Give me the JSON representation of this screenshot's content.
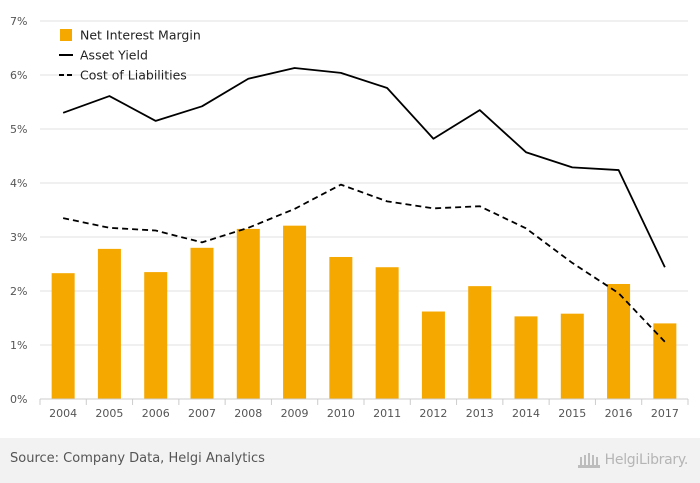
{
  "chart_data": {
    "type": "bar",
    "categories": [
      "2004",
      "2005",
      "2006",
      "2007",
      "2008",
      "2009",
      "2010",
      "2011",
      "2012",
      "2013",
      "2014",
      "2015",
      "2016",
      "2017"
    ],
    "series": [
      {
        "name": "Net Interest Margin",
        "type": "bar",
        "color": "#f5a800",
        "values": [
          2.33,
          2.78,
          2.35,
          2.8,
          3.15,
          3.21,
          2.63,
          2.44,
          1.62,
          2.09,
          1.53,
          1.58,
          2.13,
          1.4
        ]
      },
      {
        "name": "Asset Yield",
        "type": "line",
        "color": "#000000",
        "dash": "solid",
        "values": [
          5.3,
          5.61,
          5.15,
          5.42,
          5.93,
          6.13,
          6.04,
          5.76,
          4.82,
          5.35,
          4.57,
          4.29,
          4.24,
          2.44
        ]
      },
      {
        "name": "Cost of Liabilities",
        "type": "line",
        "color": "#000000",
        "dash": "dashed",
        "values": [
          3.35,
          3.17,
          3.12,
          2.9,
          3.17,
          3.52,
          3.97,
          3.66,
          3.53,
          3.57,
          3.16,
          2.52,
          1.96,
          1.06
        ]
      }
    ],
    "y_ticks": [
      "0%",
      "1%",
      "2%",
      "3%",
      "4%",
      "5%",
      "6%",
      "7%"
    ],
    "ylim": [
      0,
      7
    ],
    "legend_position": "top-left",
    "grid": "horizontal"
  },
  "footer": {
    "source": "Source: Company Data, Helgi Analytics",
    "brand": "HelgiLibrary."
  }
}
